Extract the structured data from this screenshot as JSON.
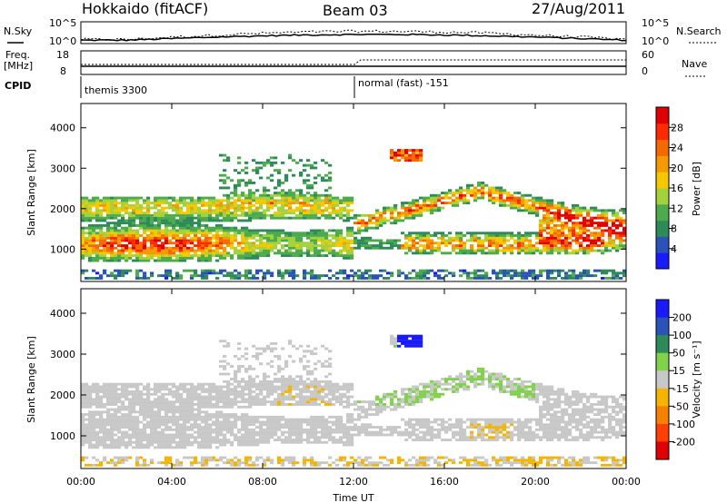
{
  "header": {
    "radar": "Hokkaido (fitACF)",
    "beam": "Beam 03",
    "date": "27/Aug/2011"
  },
  "status_panel": {
    "nsky_label": "N.Sky",
    "nsky_ticks": [
      "10^5",
      "10^0"
    ],
    "nsearch_label": "N.Search",
    "nsearch_ticks": [
      "10^5",
      "10^0"
    ],
    "freq_label_1": "Freq.",
    "freq_label_2": "[MHz]",
    "freq_ticks": [
      "18",
      "8"
    ],
    "nave_label": "Nave",
    "nave_ticks": [
      "60",
      "0"
    ],
    "cpid_label": "CPID",
    "cpid_entries": [
      {
        "text": "themis 3300",
        "start_hour": 0
      },
      {
        "text": "normal (fast) -151",
        "start_hour": 12
      }
    ]
  },
  "chart_data": [
    {
      "type": "heatmap",
      "panel": "power",
      "ylabel": "Slant Range [km]",
      "xlabel": "Time UT",
      "x_ticks": [
        "00:00",
        "04:00",
        "08:00",
        "12:00",
        "16:00",
        "20:00",
        "00:00"
      ],
      "y_ticks": [
        1000,
        2000,
        3000,
        4000
      ],
      "ylim": [
        200,
        4600
      ],
      "xlim_hours": [
        0,
        24
      ],
      "colorbar": {
        "label": "Power [dB]",
        "ticks": [
          4,
          8,
          12,
          16,
          20,
          24,
          28
        ],
        "range": [
          0,
          32
        ],
        "colors": [
          "#1a1aff",
          "#2a52b8",
          "#2f8a5a",
          "#4daa4d",
          "#a3d23c",
          "#f5c800",
          "#f59a00",
          "#f56a00",
          "#ff2a00",
          "#e00000"
        ]
      }
    },
    {
      "type": "heatmap",
      "panel": "velocity",
      "ylabel": "Slant Range [km]",
      "xlabel": "Time UT",
      "x_ticks": [
        "00:00",
        "04:00",
        "08:00",
        "12:00",
        "16:00",
        "20:00",
        "00:00"
      ],
      "y_ticks": [
        1000,
        2000,
        3000,
        4000
      ],
      "ylim": [
        200,
        4600
      ],
      "xlim_hours": [
        0,
        24
      ],
      "colorbar": {
        "label": "Velocity [m s⁻¹]",
        "ticks": [
          "200",
          "100",
          "50",
          "15",
          "-15",
          "-50",
          "-100",
          "-200"
        ],
        "colors": [
          "#1a1aff",
          "#2a52b8",
          "#2f8a5a",
          "#7fd24a",
          "#c8c8c8",
          "#f5b400",
          "#f58200",
          "#ff4000",
          "#e00000"
        ]
      }
    }
  ]
}
